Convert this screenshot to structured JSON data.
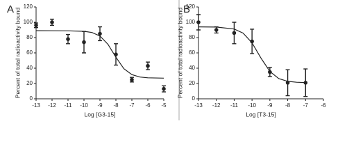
{
  "chart_data": [
    {
      "type": "scatter",
      "panel_label": "A",
      "y_label": "Percent of total radioactivity bound",
      "x_label": "Log [G3-15]",
      "xlim": [
        -13,
        -5
      ],
      "xticks": [
        -13,
        -12,
        -11,
        -10,
        -9,
        -8,
        -7,
        -6,
        -5
      ],
      "ylim": [
        0,
        120
      ],
      "yticks": [
        0,
        20,
        40,
        60,
        80,
        100,
        120
      ],
      "color": "#222222",
      "points": {
        "x": [
          -13,
          -12,
          -11,
          -10,
          -9,
          -8,
          -7,
          -6,
          -5
        ],
        "values": [
          96,
          100,
          78,
          74,
          85,
          58,
          25,
          43,
          13
        ],
        "errors": [
          3,
          4,
          6,
          14,
          9,
          14,
          3,
          5,
          4
        ]
      },
      "fit": {
        "x": [
          -13,
          -12,
          -11,
          -10,
          -9.5,
          -9,
          -8.5,
          -8,
          -7.5,
          -7,
          -6.5,
          -6,
          -5
        ],
        "values": [
          89,
          88.9,
          88.8,
          88.2,
          86.6,
          82.1,
          71.3,
          54.4,
          39.4,
          31.6,
          28.5,
          27.5,
          27
        ]
      }
    },
    {
      "type": "scatter",
      "panel_label": "B",
      "y_label": "Percent of total radioactivity bound",
      "x_label": "Log [T3-15]",
      "xlim": [
        -13,
        -6
      ],
      "xticks": [
        -13,
        -12,
        -11,
        -10,
        -9,
        -8,
        -7,
        -6
      ],
      "ylim": [
        0,
        120
      ],
      "yticks": [
        0,
        20,
        40,
        60,
        80,
        100,
        120
      ],
      "color": "#222222",
      "points": {
        "x": [
          -13,
          -12,
          -11,
          -10,
          -9,
          -8,
          -7
        ],
        "values": [
          100,
          90,
          86,
          75,
          35,
          21,
          21
        ],
        "errors": [
          10,
          4,
          14,
          16,
          6,
          17,
          18
        ]
      },
      "fit": {
        "x": [
          -13,
          -12,
          -11,
          -10.5,
          -10,
          -9.5,
          -9,
          -8.5,
          -8,
          -7.5,
          -7
        ],
        "values": [
          94,
          93.7,
          91.2,
          85.8,
          73.2,
          53.3,
          35.7,
          26.4,
          22.8,
          21.6,
          21.2
        ]
      }
    }
  ]
}
